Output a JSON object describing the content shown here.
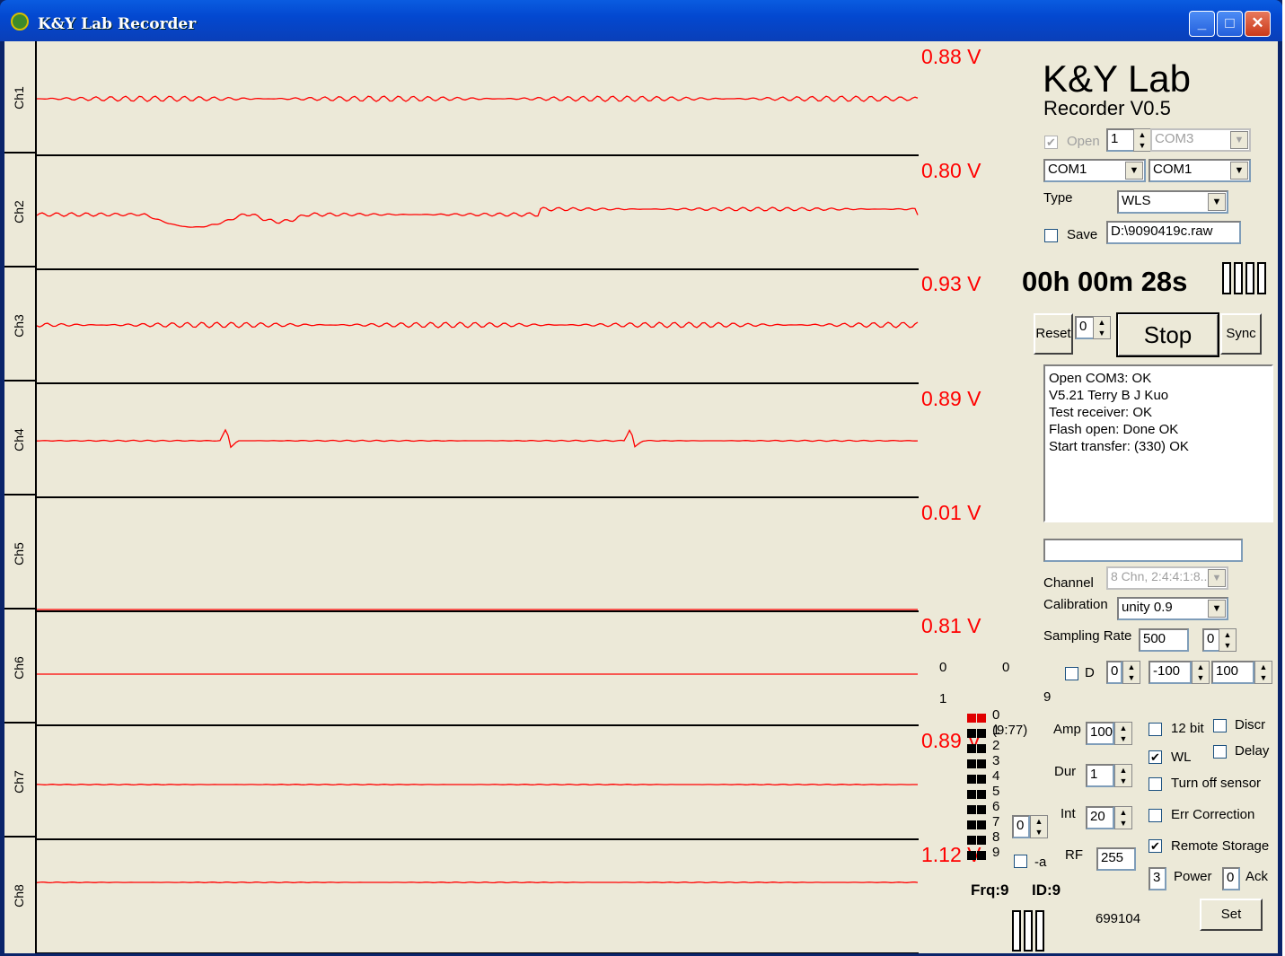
{
  "window": {
    "title": "K&Y Lab  Recorder",
    "minimize": "_",
    "maximize": "□",
    "close": "✕"
  },
  "channels": [
    {
      "label": "Ch1",
      "voltage": "0.88 V"
    },
    {
      "label": "Ch2",
      "voltage": "0.80 V"
    },
    {
      "label": "Ch3",
      "voltage": "0.93 V"
    },
    {
      "label": "Ch4",
      "voltage": "0.89 V"
    },
    {
      "label": "Ch5",
      "voltage": "0.01 V"
    },
    {
      "label": "Ch6",
      "voltage": "0.81 V"
    },
    {
      "label": "Ch7",
      "voltage": "0.89 V"
    },
    {
      "label": "Ch8",
      "voltage": "1.12 V"
    }
  ],
  "trace_color": "#ff0000",
  "brand": {
    "name": "K&Y Lab",
    "version": "Recorder V0.5"
  },
  "port": {
    "open_label": "Open",
    "open_checked": true,
    "index": "1",
    "com": "COM3",
    "com_a": "COM1",
    "com_b": "COM1"
  },
  "type": {
    "label": "Type",
    "value": "WLS"
  },
  "save": {
    "label": "Save",
    "checked": false,
    "path": "D:\\9090419c.raw"
  },
  "timer": "00h 00m 28s",
  "controls": {
    "reset": "Reset",
    "reset_value": "0",
    "stop": "Stop",
    "sync": "Sync"
  },
  "log": [
    "Open COM3: OK",
    "V5.21   Terry B J Kuo",
    "Test receiver: OK",
    "Flash open: Done OK",
    "Start transfer: (330) OK"
  ],
  "status_field": "",
  "channel": {
    "label": "Channel",
    "value": "8 Chn, 2:4:4:1:8.."
  },
  "calibration": {
    "label": "Calibration",
    "value": "unity 0.9"
  },
  "sampling": {
    "label": "Sampling Rate",
    "value": "500",
    "spin": "0"
  },
  "d_row": {
    "label": "D",
    "checked": false,
    "v1": "0",
    "v2": "-100",
    "v3": "100"
  },
  "counters": {
    "a": "0",
    "b": "0",
    "c": "1",
    "d": "9"
  },
  "leds": {
    "first_label": "0 (9:77)",
    "labels": [
      "1",
      "2",
      "3",
      "4",
      "5",
      "6",
      "7",
      "8",
      "9"
    ]
  },
  "amp": {
    "label": "Amp",
    "value": "100"
  },
  "dur": {
    "label": "Dur",
    "value": "1"
  },
  "int": {
    "label": "Int",
    "value": "20"
  },
  "misc_spin": "0",
  "neg_a": {
    "label": "-a",
    "checked": false
  },
  "rf": {
    "label": "RF",
    "value": "255"
  },
  "options": {
    "bit12": "12 bit",
    "discr": "Discr",
    "wl": "WL",
    "delay": "Delay",
    "turn_off": "Turn off sensor",
    "err": "Err Correction",
    "remote": "Remote Storage"
  },
  "power": {
    "value": "3",
    "label": "Power"
  },
  "ack": {
    "value": "0",
    "label": "Ack"
  },
  "freq": "Frq:9",
  "id": "ID:9",
  "counter_value": "699104",
  "set": "Set"
}
